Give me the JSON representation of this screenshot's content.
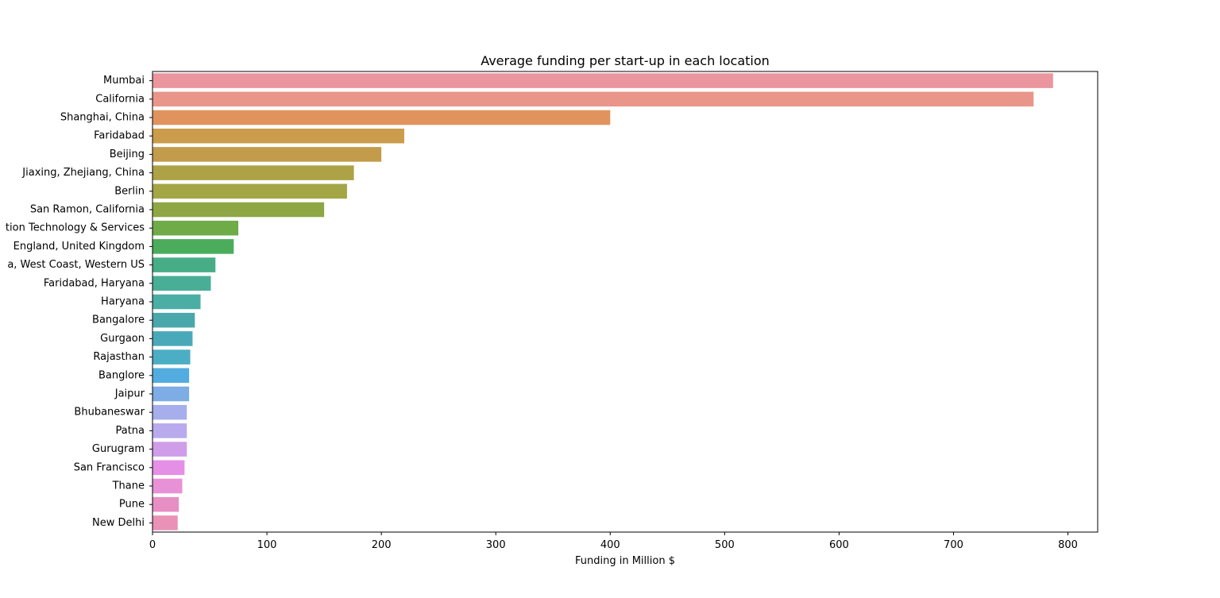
{
  "chart_data": {
    "type": "bar",
    "orientation": "horizontal",
    "title": "Average funding per start-up in each location",
    "xlabel": "Funding in Million $",
    "ylabel": "",
    "xlim": [
      0,
      826
    ],
    "xticks": [
      0,
      100,
      200,
      300,
      400,
      500,
      600,
      700,
      800
    ],
    "grid": false,
    "categories": [
      "Mumbai",
      "California",
      "Shanghai, China",
      "Faridabad",
      "Beijing",
      "Jiaxing, Zhejiang, China",
      "Berlin",
      "San Ramon, California",
      "tion Technology & Services",
      "England, United Kingdom",
      "a, West Coast, Western US",
      "Faridabad, Haryana",
      "Haryana",
      "Bangalore",
      "Gurgaon",
      "Rajasthan",
      "Banglore",
      "Jaipur",
      "Bhubaneswar",
      "Patna",
      "Gurugram",
      "San Francisco",
      "Thane",
      "Pune",
      "New Delhi"
    ],
    "values": [
      787,
      770,
      400,
      220,
      200,
      176,
      170,
      150,
      75,
      71,
      55,
      51,
      42,
      37,
      35,
      33,
      32,
      32,
      30,
      30,
      30,
      28,
      26,
      23,
      22
    ],
    "colors": [
      "#eb959e",
      "#e9958a",
      "#e1935d",
      "#ca9c4b",
      "#c29c4b",
      "#ada245",
      "#a4a646",
      "#8ea644",
      "#6fab47",
      "#4bad5c",
      "#47ad87",
      "#49ae96",
      "#4baea5",
      "#4aa8ac",
      "#4aa9b9",
      "#4baec4",
      "#52ace0",
      "#7eade6",
      "#a6aeeb",
      "#b9aaed",
      "#d09de9",
      "#e58fe6",
      "#e991d6",
      "#e78fc4",
      "#e991b6"
    ]
  }
}
